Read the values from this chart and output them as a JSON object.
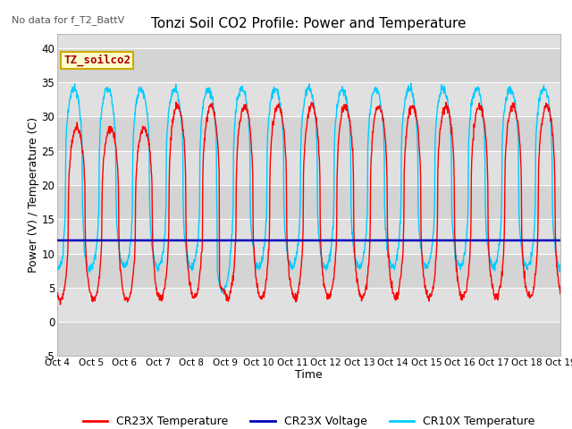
{
  "title": "Tonzi Soil CO2 Profile: Power and Temperature",
  "subtitle": "No data for f_T2_BattV",
  "ylabel": "Power (V) / Temperature (C)",
  "xlabel": "Time",
  "ylim": [
    -5,
    42
  ],
  "yticks": [
    -5,
    0,
    5,
    10,
    15,
    20,
    25,
    30,
    35,
    40
  ],
  "x_tick_labels": [
    "Oct 4",
    "Oct 5",
    "Oct 6",
    "Oct 7",
    "Oct 8",
    "Oct 9",
    "Oct 10",
    "Oct 11",
    "Oct 12",
    "Oct 13",
    "Oct 14",
    "Oct 15",
    "Oct 16",
    "Oct 17",
    "Oct 18",
    "Oct 19"
  ],
  "legend_labels": [
    "CR23X Temperature",
    "CR23X Voltage",
    "CR10X Temperature"
  ],
  "cr23x_color": "#ff0000",
  "cr10x_color": "#00ccff",
  "voltage_color": "#0000bb",
  "cr23x_voltage_value": 11.9,
  "background_color": "#ffffff",
  "plot_bg_color": "#e0e0e0",
  "grid_color": "#ffffff",
  "band_color": "#cccccc",
  "annotation_text": "TZ_soilco2",
  "annotation_color": "#aa0000",
  "annotation_bg": "#ffffcc",
  "annotation_edge": "#ccaa00"
}
